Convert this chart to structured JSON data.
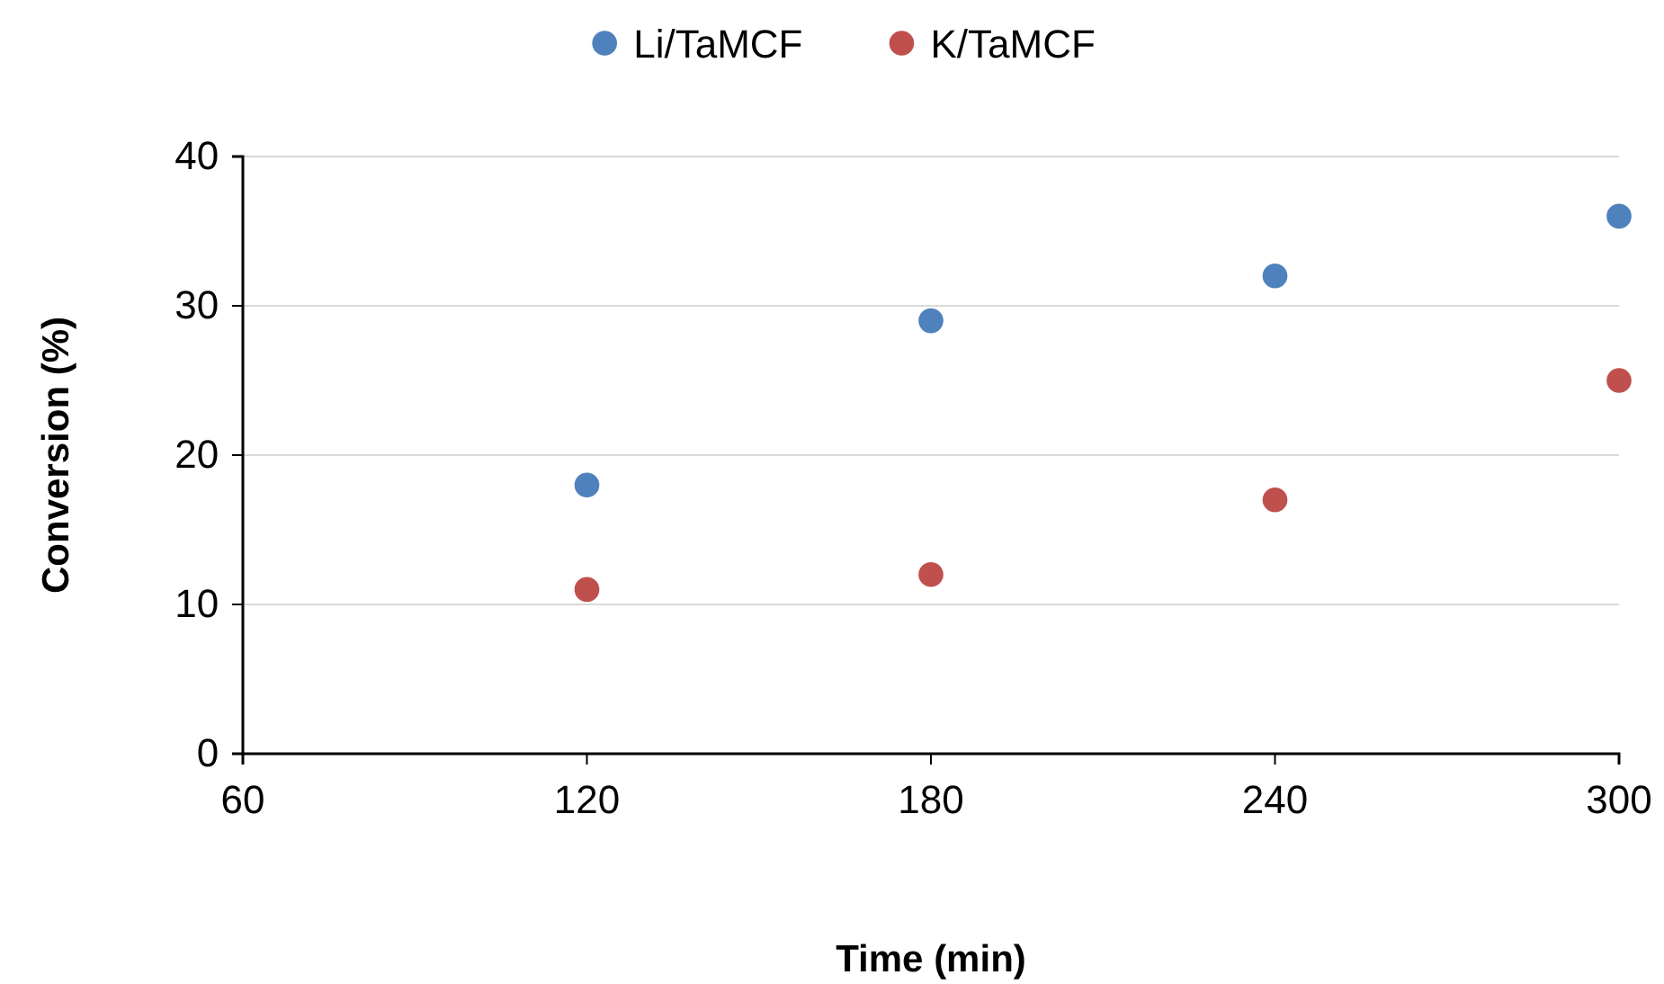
{
  "chart_data": {
    "type": "scatter",
    "xlabel": "Time (min)",
    "ylabel": "Conversion (%)",
    "x": [
      120,
      180,
      240,
      300
    ],
    "series": [
      {
        "name": "Li/TaMCF",
        "color": "#4f81bd",
        "values": [
          18,
          29,
          32,
          36
        ]
      },
      {
        "name": "K/TaMCF",
        "color": "#c0504d",
        "values": [
          11,
          12,
          17,
          25
        ]
      }
    ],
    "xlim": [
      60,
      300
    ],
    "xticks": [
      60,
      120,
      180,
      240,
      300
    ],
    "ylim": [
      0,
      40
    ],
    "yticks": [
      0,
      10,
      20,
      30,
      40
    ],
    "grid": "y",
    "legend": "top",
    "marker": "circle"
  }
}
